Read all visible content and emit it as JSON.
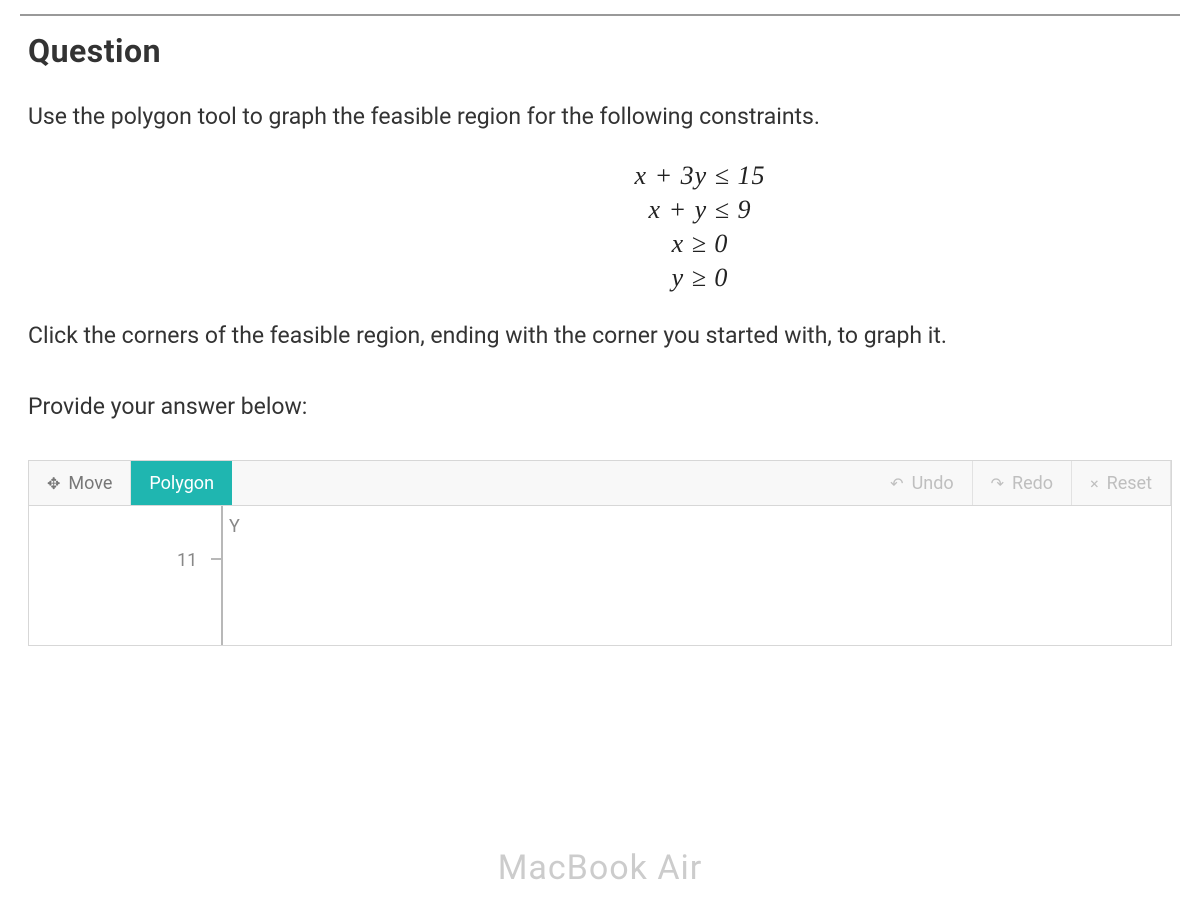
{
  "heading": "Question",
  "instruction": "Use the polygon tool to graph the feasible region for the following constraints.",
  "constraints": {
    "c1": "x + 3y ≤ 15",
    "c2": "x + y ≤ 9",
    "c3": "x ≥ 0",
    "c4": "y ≥ 0"
  },
  "click_instruction": "Click the corners of the feasible region, ending with the corner you started with, to graph it.",
  "answer_prompt": "Provide your answer below:",
  "toolbar": {
    "move": "Move",
    "polygon": "Polygon",
    "undo": "Undo",
    "redo": "Redo",
    "reset": "Reset"
  },
  "graph": {
    "y_label": "Y",
    "tick_11": "11"
  },
  "watermark": "MacBook Air",
  "colors": {
    "selected_tool_bg": "#1fb6b0",
    "disabled_text": "#bfbfbf",
    "border": "#d7d7d7"
  }
}
